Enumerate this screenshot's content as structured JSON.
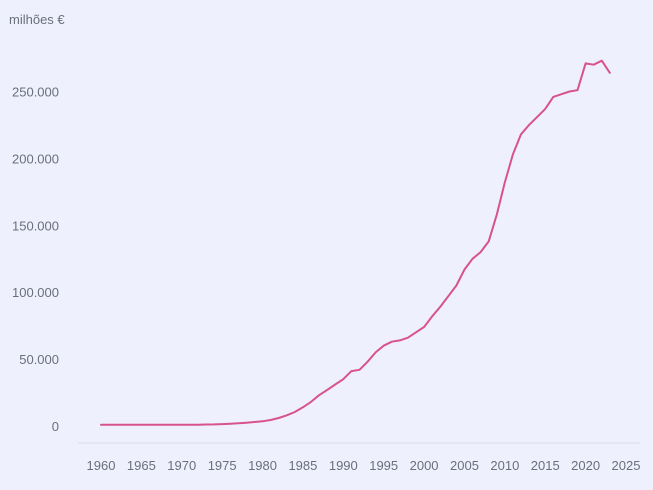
{
  "chart_data": {
    "type": "line",
    "title": "",
    "xlabel": "",
    "ylabel": "milhões €",
    "xlim": [
      1955,
      2025
    ],
    "ylim": [
      0,
      275000
    ],
    "x_ticks": [
      1960,
      1965,
      1970,
      1975,
      1980,
      1985,
      1990,
      1995,
      2000,
      2005,
      2010,
      2015,
      2020,
      2025
    ],
    "y_ticks": [
      0,
      50000,
      100000,
      150000,
      200000,
      250000
    ],
    "y_tick_labels": [
      "0",
      "50.000",
      "100.000",
      "150.000",
      "200.000",
      "250.000"
    ],
    "grid": false,
    "legend": "none",
    "colors": {
      "line": "#d8528b",
      "background": "#eef1fd",
      "axis": "#d9dce8",
      "text": "#6b6f7a"
    },
    "series": [
      {
        "x": [
          1960,
          1961,
          1962,
          1963,
          1964,
          1965,
          1966,
          1967,
          1968,
          1969,
          1970,
          1971,
          1972,
          1973,
          1974,
          1975,
          1976,
          1977,
          1978,
          1979,
          1980,
          1981,
          1982,
          1983,
          1984,
          1985,
          1986,
          1987,
          1988,
          1989,
          1990,
          1991,
          1992,
          1993,
          1994,
          1995,
          1996,
          1997,
          1998,
          1999,
          2000,
          2001,
          2002,
          2003,
          2004,
          2005,
          2006,
          2007,
          2008,
          2009,
          2010,
          2011,
          2012,
          2013,
          2014,
          2015,
          2016,
          2017,
          2018,
          2019,
          2020,
          2021,
          2022,
          2023
        ],
        "y": [
          1000,
          1000,
          1000,
          1000,
          1000,
          1000,
          1000,
          1000,
          1000,
          1000,
          1000,
          1000,
          1000,
          1100,
          1200,
          1400,
          1700,
          2000,
          2500,
          3000,
          3500,
          4500,
          6000,
          8000,
          10500,
          14000,
          18000,
          23000,
          27000,
          31000,
          35000,
          41000,
          42000,
          48000,
          55000,
          60000,
          63000,
          64000,
          66000,
          70000,
          74000,
          82000,
          89000,
          97000,
          105000,
          117000,
          125000,
          130000,
          138000,
          158000,
          182000,
          203000,
          218000,
          225000,
          231000,
          237000,
          246000,
          248000,
          250000,
          251000,
          271000,
          270000,
          273000,
          264000
        ]
      }
    ]
  }
}
